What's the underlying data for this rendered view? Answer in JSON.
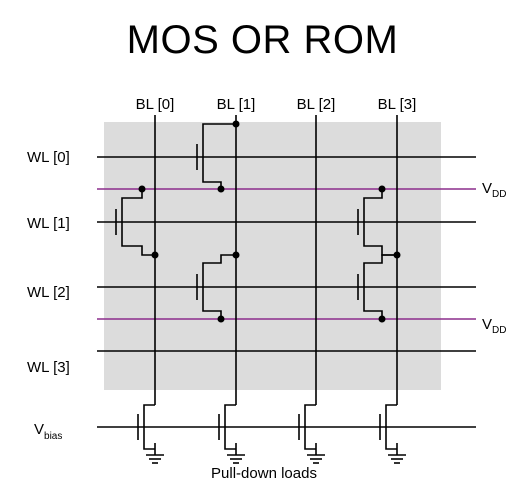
{
  "title": "MOS OR ROM",
  "bitlines": [
    "BL [0]",
    "BL [1]",
    "BL [2]",
    "BL [3]"
  ],
  "wordlines": [
    "WL [0]",
    "WL [1]",
    "WL [2]",
    "WL [3]"
  ],
  "supply": {
    "main": "V",
    "sub": "DD"
  },
  "bias": {
    "main": "V",
    "sub": "bias"
  },
  "footer": "Pull-down loads",
  "colors": {
    "array_bg": "#dcdcdc",
    "wire": "#000000",
    "vdd_line": "#8b2d8b"
  }
}
